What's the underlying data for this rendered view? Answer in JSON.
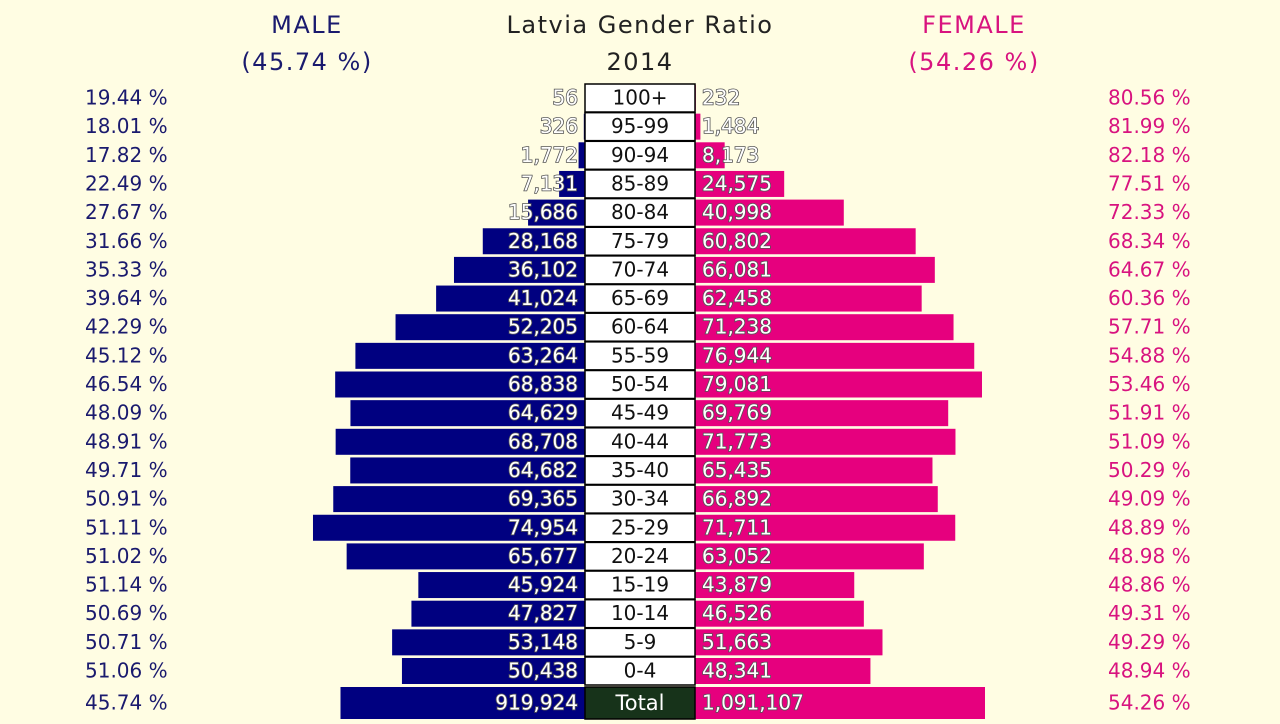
{
  "chart_data": {
    "type": "pyramid",
    "title": "Latvia Gender Ratio",
    "subtitle": "2014",
    "categories": [
      "100+",
      "95-99",
      "90-94",
      "85-89",
      "80-84",
      "75-79",
      "70-74",
      "65-69",
      "60-64",
      "55-59",
      "50-54",
      "45-49",
      "40-44",
      "35-40",
      "30-34",
      "25-29",
      "20-24",
      "15-19",
      "10-14",
      "5-9",
      "0-4"
    ],
    "series": [
      {
        "name": "MALE",
        "total_share": 45.74,
        "total_share_label": "(45.74 %)",
        "color": "#000080",
        "share_color": "#1a1a6e",
        "values": [
          56,
          326,
          1772,
          7131,
          15686,
          28168,
          36102,
          41024,
          52205,
          63264,
          68838,
          64629,
          68708,
          64682,
          69365,
          74954,
          65677,
          45924,
          47827,
          53148,
          50438
        ],
        "value_labels": [
          "56",
          "326",
          "1,772",
          "7,131",
          "15,686",
          "28,168",
          "36,102",
          "41,024",
          "52,205",
          "63,264",
          "68,838",
          "64,629",
          "68,708",
          "64,682",
          "69,365",
          "74,954",
          "65,677",
          "45,924",
          "47,827",
          "53,148",
          "50,438"
        ],
        "shares": [
          19.44,
          18.01,
          17.82,
          22.49,
          27.67,
          31.66,
          35.33,
          39.64,
          42.29,
          45.12,
          46.54,
          48.09,
          48.91,
          49.71,
          50.91,
          51.11,
          51.02,
          51.14,
          50.69,
          50.71,
          51.06
        ],
        "share_labels": [
          "19.44 %",
          "18.01 %",
          "17.82 %",
          "22.49 %",
          "27.67 %",
          "31.66 %",
          "35.33 %",
          "39.64 %",
          "42.29 %",
          "45.12 %",
          "46.54 %",
          "48.09 %",
          "48.91 %",
          "49.71 %",
          "50.91 %",
          "51.11 %",
          "51.02 %",
          "51.14 %",
          "50.69 %",
          "50.71 %",
          "51.06 %"
        ]
      },
      {
        "name": "FEMALE",
        "total_share": 54.26,
        "total_share_label": "(54.26 %)",
        "color": "#e6007e",
        "share_color": "#d8137f",
        "values": [
          232,
          1484,
          8173,
          24575,
          40998,
          60802,
          66081,
          62458,
          71238,
          76944,
          79081,
          69769,
          71773,
          65435,
          66892,
          71711,
          63052,
          43879,
          46526,
          51663,
          48341
        ],
        "value_labels": [
          "232",
          "1,484",
          "8,173",
          "24,575",
          "40,998",
          "60,802",
          "66,081",
          "62,458",
          "71,238",
          "76,944",
          "79,081",
          "69,769",
          "71,773",
          "65,435",
          "66,892",
          "71,711",
          "63,052",
          "43,879",
          "46,526",
          "51,663",
          "48,341"
        ],
        "shares": [
          80.56,
          81.99,
          82.18,
          77.51,
          72.33,
          68.34,
          64.67,
          60.36,
          57.71,
          54.88,
          53.46,
          51.91,
          51.09,
          50.29,
          49.09,
          48.89,
          48.98,
          48.86,
          49.31,
          49.29,
          48.94
        ],
        "share_labels": [
          "80.56 %",
          "81.99 %",
          "82.18 %",
          "77.51 %",
          "72.33 %",
          "68.34 %",
          "64.67 %",
          "60.36 %",
          "57.71 %",
          "54.88 %",
          "53.46 %",
          "51.91 %",
          "51.09 %",
          "50.29 %",
          "49.09 %",
          "48.89 %",
          "48.98 %",
          "48.86 %",
          "49.31 %",
          "49.29 %",
          "48.94 %"
        ]
      }
    ],
    "total": {
      "label": "Total",
      "values": [
        919924,
        1091107
      ],
      "value_labels": [
        "919,924",
        "1,091,107"
      ],
      "shares": [
        45.74,
        54.26
      ],
      "share_labels": [
        "45.74 %",
        "54.26 %"
      ]
    }
  }
}
